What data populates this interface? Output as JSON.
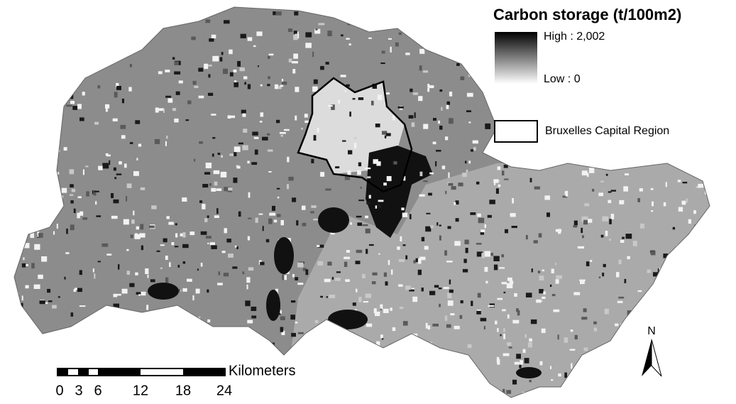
{
  "legend": {
    "title": "Carbon storage (t/100m2)",
    "high": "High : 2,002",
    "low": "Low : 0",
    "boundary": "Bruxelles Capital Region"
  },
  "scale_bar": {
    "unit": "Kilometers",
    "labels": [
      "0",
      "3",
      "6",
      "12",
      "18",
      "24"
    ]
  },
  "north_arrow": {
    "label": "N"
  }
}
